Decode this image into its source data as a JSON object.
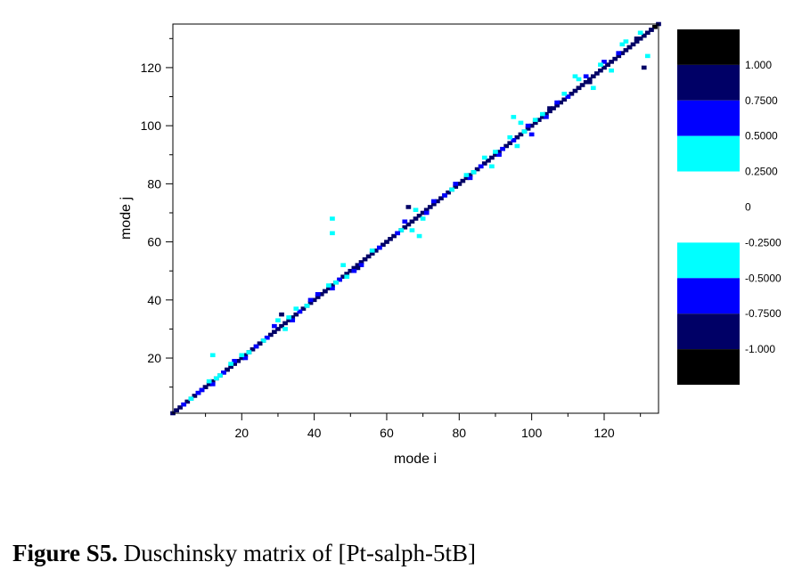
{
  "caption": {
    "label": "Figure S5.",
    "text": " Duschinsky matrix of [Pt-salph-5tB]"
  },
  "chart_data": {
    "type": "heatmap",
    "title": "",
    "xlabel": "mode i",
    "ylabel": "mode j",
    "xlim": [
      1,
      135
    ],
    "ylim": [
      1,
      135
    ],
    "xticks": [
      20,
      40,
      60,
      80,
      100,
      120
    ],
    "yticks": [
      20,
      40,
      60,
      80,
      100,
      120
    ],
    "grid": false,
    "legend": "right",
    "colorbar": {
      "levels": [
        {
          "from": 1.0,
          "to": 1.25,
          "color": "#000000"
        },
        {
          "from": 0.75,
          "to": 1.0,
          "color": "#000066"
        },
        {
          "from": 0.5,
          "to": 0.75,
          "color": "#0000ff"
        },
        {
          "from": 0.25,
          "to": 0.5,
          "color": "#00ffff"
        },
        {
          "from": -0.25,
          "to": 0.25,
          "color": "#ffffff"
        },
        {
          "from": -0.5,
          "to": -0.25,
          "color": "#00ffff"
        },
        {
          "from": -0.75,
          "to": -0.5,
          "color": "#0000ff"
        },
        {
          "from": -1.0,
          "to": -0.75,
          "color": "#000066"
        },
        {
          "from": -1.25,
          "to": -1.0,
          "color": "#000000"
        }
      ],
      "tick_labels": [
        "1.000",
        "0.7500",
        "0.5000",
        "0.2500",
        "0",
        "-0.2500",
        "-0.5000",
        "-0.7500",
        "-1.000"
      ],
      "tick_values": [
        1.0,
        0.75,
        0.5,
        0.25,
        0,
        -0.25,
        -0.5,
        -0.75,
        -1.0
      ]
    },
    "diagonal": {
      "from": 1,
      "to": 135,
      "value": 0.8
    },
    "points": [
      [
        134,
        134,
        1.0
      ],
      [
        133,
        133,
        0.9
      ],
      [
        131,
        131,
        0.8
      ],
      [
        130,
        132,
        0.4
      ],
      [
        129,
        130,
        0.8
      ],
      [
        127,
        127,
        0.8
      ],
      [
        125,
        128,
        0.4
      ],
      [
        126,
        129,
        0.35
      ],
      [
        131,
        120,
        0.8
      ],
      [
        132,
        124,
        0.3
      ],
      [
        124,
        125,
        0.7
      ],
      [
        121,
        121,
        0.85
      ],
      [
        120,
        122,
        0.5
      ],
      [
        122,
        119,
        0.4
      ],
      [
        119,
        121,
        0.3
      ],
      [
        116,
        115,
        0.8
      ],
      [
        115,
        117,
        0.5
      ],
      [
        113,
        116,
        0.4
      ],
      [
        112,
        117,
        0.3
      ],
      [
        117,
        113,
        0.3
      ],
      [
        113,
        113,
        0.75
      ],
      [
        110,
        110,
        0.7
      ],
      [
        109,
        111,
        0.4
      ],
      [
        107,
        108,
        0.6
      ],
      [
        105,
        106,
        0.8
      ],
      [
        104,
        103,
        0.5
      ],
      [
        103,
        104,
        0.4
      ],
      [
        101,
        102,
        0.4
      ],
      [
        99,
        100,
        0.6
      ],
      [
        100,
        97,
        0.5
      ],
      [
        98,
        98,
        0.4
      ],
      [
        97,
        101,
        0.3
      ],
      [
        95,
        95,
        0.7
      ],
      [
        94,
        96,
        0.4
      ],
      [
        96,
        93,
        0.3
      ],
      [
        95,
        103,
        0.3
      ],
      [
        92,
        92,
        0.7
      ],
      [
        91,
        90,
        0.5
      ],
      [
        90,
        91,
        0.4
      ],
      [
        88,
        88,
        0.8
      ],
      [
        87,
        89,
        0.4
      ],
      [
        89,
        86,
        0.3
      ],
      [
        86,
        86,
        0.6
      ],
      [
        84,
        84,
        0.4
      ],
      [
        83,
        82,
        0.5
      ],
      [
        82,
        83,
        0.4
      ],
      [
        80,
        80,
        0.9
      ],
      [
        79,
        80,
        0.6
      ],
      [
        78,
        78,
        0.4
      ],
      [
        76,
        76,
        0.6
      ],
      [
        73,
        74,
        0.6
      ],
      [
        71,
        70,
        0.5
      ],
      [
        70,
        68,
        0.35
      ],
      [
        69,
        62,
        0.4
      ],
      [
        67,
        64,
        0.4
      ],
      [
        66,
        72,
        0.8
      ],
      [
        68,
        71,
        0.4
      ],
      [
        65,
        67,
        0.6
      ],
      [
        64,
        64,
        0.4
      ],
      [
        63,
        63,
        0.5
      ],
      [
        45,
        68,
        0.35
      ],
      [
        45,
        63,
        0.3
      ],
      [
        58,
        58,
        0.6
      ],
      [
        56,
        57,
        0.4
      ],
      [
        53,
        52,
        0.5
      ],
      [
        52,
        51,
        0.8
      ],
      [
        51,
        50,
        0.6
      ],
      [
        49,
        48,
        0.4
      ],
      [
        47,
        47,
        0.5
      ],
      [
        46,
        46,
        0.4
      ],
      [
        45,
        44,
        0.5
      ],
      [
        44,
        45,
        0.35
      ],
      [
        48,
        52,
        0.3
      ],
      [
        43,
        43,
        0.8
      ],
      [
        41,
        42,
        0.5
      ],
      [
        39,
        40,
        0.6
      ],
      [
        38,
        38,
        0.4
      ],
      [
        36,
        36,
        0.5
      ],
      [
        35,
        37,
        0.35
      ],
      [
        34,
        33,
        0.5
      ],
      [
        33,
        34,
        0.4
      ],
      [
        32,
        30,
        0.4
      ],
      [
        31,
        35,
        0.8
      ],
      [
        30,
        33,
        0.4
      ],
      [
        29,
        31,
        0.6
      ],
      [
        27,
        27,
        0.7
      ],
      [
        26,
        26,
        0.4
      ],
      [
        25,
        25,
        0.8
      ],
      [
        24,
        24,
        0.5
      ],
      [
        22,
        22,
        0.4
      ],
      [
        21,
        20,
        0.6
      ],
      [
        20,
        21,
        0.4
      ],
      [
        18,
        19,
        0.5
      ],
      [
        17,
        18,
        0.4
      ],
      [
        16,
        16,
        0.8
      ],
      [
        15,
        15,
        0.5
      ],
      [
        14,
        14,
        0.4
      ],
      [
        13,
        13,
        0.4
      ],
      [
        12,
        11,
        0.6
      ],
      [
        12,
        21,
        0.3
      ],
      [
        11,
        12,
        0.35
      ],
      [
        10,
        10,
        0.8
      ],
      [
        9,
        9,
        0.6
      ],
      [
        8,
        8,
        0.5
      ],
      [
        6,
        6,
        0.4
      ],
      [
        4,
        4,
        0.6
      ],
      [
        2,
        2,
        0.8
      ]
    ]
  }
}
